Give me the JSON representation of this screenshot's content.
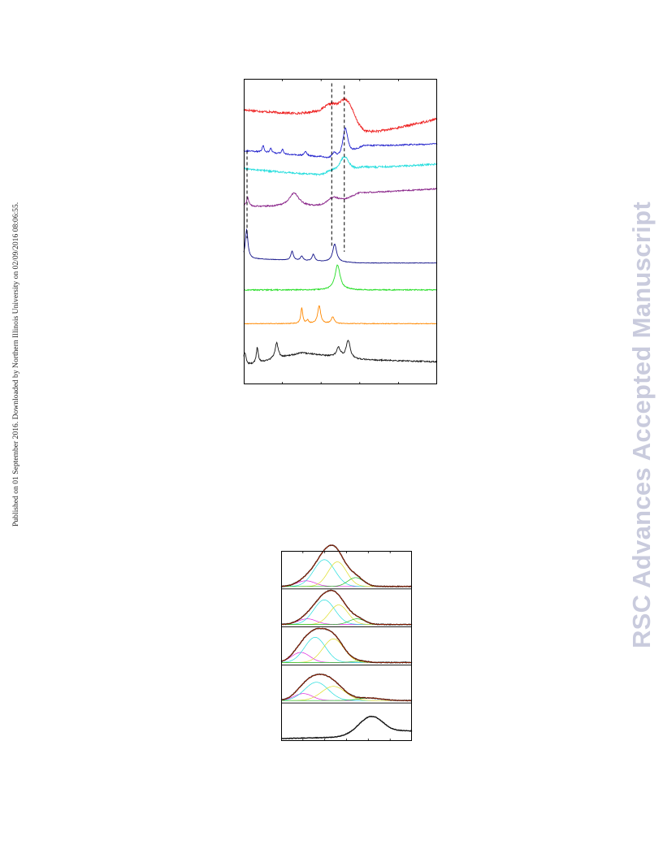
{
  "page": {
    "side_note": "Published on 01 September 2016. Downloaded by Northern Illinois University on 02/09/2016 08:06:55.",
    "watermark": "RSC Advances Accepted Manuscript"
  },
  "chart_data": [
    {
      "type": "line",
      "title": "",
      "xlabel": "",
      "ylabel": "",
      "grid": false,
      "legend": "none",
      "xlim": [
        0,
        100
      ],
      "series": [
        {
          "color": "#ee2222",
          "noise": 1.0,
          "baseline": [
            [
              0,
              90
            ],
            [
              35,
              87
            ],
            [
              46,
              83
            ],
            [
              62,
              78
            ],
            [
              100,
              86
            ]
          ],
          "peaks": [
            [
              45,
              7,
              6
            ],
            [
              52,
              7,
              4
            ],
            [
              55,
              6,
              4
            ]
          ]
        },
        {
          "color": "#2222cc",
          "noise": 0.6,
          "baseline": [
            [
              0,
              72
            ],
            [
              40,
              69
            ],
            [
              48,
              66
            ],
            [
              62,
              74
            ],
            [
              100,
              75
            ]
          ],
          "peaks": [
            [
              10,
              3,
              0.6
            ],
            [
              14,
              2,
              0.6
            ],
            [
              20,
              2,
              0.6
            ],
            [
              32,
              2,
              0.8
            ],
            [
              47,
              4,
              2
            ],
            [
              52.5,
              13,
              1.6
            ]
          ]
        },
        {
          "color": "#22dddd",
          "noise": 0.8,
          "baseline": [
            [
              0,
              64
            ],
            [
              35,
              61
            ],
            [
              45,
              58
            ],
            [
              62,
              64
            ],
            [
              100,
              66
            ]
          ],
          "peaks": [
            [
              45,
              4,
              4
            ],
            [
              52,
              8,
              3
            ]
          ]
        },
        {
          "color": "#882288",
          "noise": 0.6,
          "baseline": [
            [
              0,
              47
            ],
            [
              30,
              47
            ],
            [
              46,
              46
            ],
            [
              60,
              53
            ],
            [
              100,
              55
            ]
          ],
          "peaks": [
            [
              2,
              4,
              0.8
            ],
            [
              26,
              6,
              3
            ],
            [
              46,
              5,
              4
            ]
          ]
        },
        {
          "color": "#111188",
          "noise": 0.2,
          "baseline": [
            [
              0,
              24
            ],
            [
              60,
              22
            ],
            [
              100,
              22
            ]
          ],
          "peaks": [
            [
              1.5,
              13,
              0.8
            ],
            [
              25,
              4,
              0.8
            ],
            [
              30,
              2,
              0.8
            ],
            [
              36,
              3,
              0.8
            ],
            [
              47,
              8,
              1.2
            ]
          ]
        },
        {
          "color": "#22dd22",
          "noise": 0.5,
          "baseline": [
            [
              0,
              10
            ],
            [
              100,
              10
            ]
          ],
          "peaks": [
            [
              48.5,
              11,
              1.6
            ]
          ]
        },
        {
          "color": "#ff8800",
          "noise": 0.3,
          "baseline": [
            [
              0,
              -5
            ],
            [
              100,
              -5
            ]
          ],
          "peaks": [
            [
              30,
              7,
              0.6
            ],
            [
              33,
              1.5,
              0.6
            ],
            [
              39,
              8,
              0.9
            ],
            [
              46,
              3,
              0.9
            ]
          ]
        },
        {
          "color": "#111111",
          "noise": 0.6,
          "baseline": [
            [
              0,
              -24
            ],
            [
              10,
              -22
            ],
            [
              30,
              -18
            ],
            [
              60,
              -21
            ],
            [
              100,
              -22
            ]
          ],
          "peaks": [
            [
              0.5,
              6,
              0.8
            ],
            [
              7,
              7,
              0.6
            ],
            [
              17,
              7,
              1.0
            ],
            [
              49,
              4,
              1.2
            ],
            [
              54,
              8,
              1.2
            ]
          ]
        }
      ],
      "dashed_markers": [
        {
          "x": 45.5,
          "from": 29,
          "to": 102
        },
        {
          "x": 52,
          "from": 27,
          "to": 101
        },
        {
          "x": 1.7,
          "from": 33,
          "to": 72
        }
      ]
    },
    {
      "type": "line",
      "title": "",
      "xlabel": "",
      "ylabel": "",
      "grid": false,
      "legend": "none",
      "panels": [
        {
          "fit_color": "#aa2200",
          "data_color": "#111111",
          "components": [
            {
              "color": "#dd22dd",
              "center": 19,
              "width": 7,
              "height": 0.18
            },
            {
              "color": "#22dddd",
              "center": 33,
              "width": 8,
              "height": 0.85
            },
            {
              "color": "#dddd22",
              "center": 43,
              "width": 7,
              "height": 0.78
            },
            {
              "color": "#22bb22",
              "center": 57,
              "width": 6,
              "height": 0.28
            }
          ]
        },
        {
          "fit_color": "#aa2200",
          "data_color": "#111111",
          "components": [
            {
              "color": "#dd22dd",
              "center": 20,
              "width": 7,
              "height": 0.18
            },
            {
              "color": "#22dddd",
              "center": 33,
              "width": 8,
              "height": 0.78
            },
            {
              "color": "#dddd22",
              "center": 44,
              "width": 7,
              "height": 0.62
            },
            {
              "color": "#22bb22",
              "center": 58,
              "width": 6,
              "height": 0.18
            }
          ]
        },
        {
          "fit_color": "#aa2200",
          "data_color": "#111111",
          "components": [
            {
              "color": "#dd22dd",
              "center": 15,
              "width": 7,
              "height": 0.32
            },
            {
              "color": "#22dddd",
              "center": 26,
              "width": 8,
              "height": 0.8
            },
            {
              "color": "#dddd22",
              "center": 40,
              "width": 8,
              "height": 0.75
            },
            {
              "color": "#22bb22",
              "center": 60,
              "width": 6,
              "height": 0.04
            }
          ]
        },
        {
          "fit_color": "#aa2200",
          "data_color": "#111111",
          "components": [
            {
              "color": "#dd22dd",
              "center": 17,
              "width": 7,
              "height": 0.22
            },
            {
              "color": "#22dddd",
              "center": 27,
              "width": 9,
              "height": 0.58
            },
            {
              "color": "#dddd22",
              "center": 40,
              "width": 9,
              "height": 0.45
            },
            {
              "color": "#22bb22",
              "center": 68,
              "width": 9,
              "height": 0.08
            }
          ]
        },
        {
          "data_color": "#111111",
          "baseline": [
            [
              0,
              0.0
            ],
            [
              40,
              0.04
            ],
            [
              60,
              0.14
            ],
            [
              100,
              0.2
            ]
          ],
          "components": [
            {
              "center": 69,
              "width": 9,
              "height": 0.55
            },
            {
              "center": 94,
              "width": 8,
              "height": 0.05
            }
          ]
        }
      ]
    }
  ]
}
